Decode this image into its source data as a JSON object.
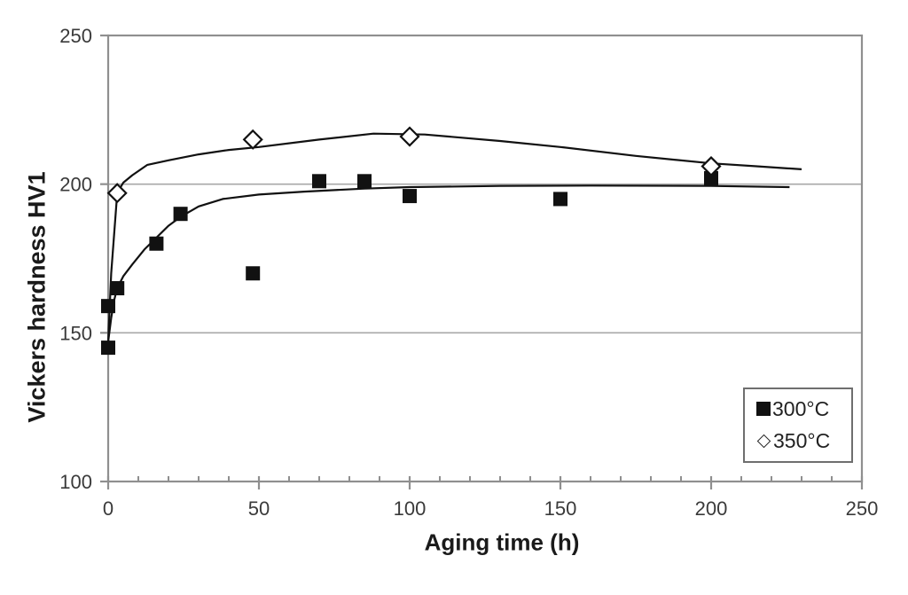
{
  "figure": {
    "background": "#ffffff",
    "curve_color": "#111111",
    "axis_color": "#8f8f8f",
    "grid_color": "#a8a8a8",
    "tick_label_color": "#3a3a3a"
  },
  "chart_data": {
    "type": "scatter",
    "title": "",
    "xlabel": "Aging time (h)",
    "ylabel": "Vickers hardness HV1",
    "xlim": [
      0,
      250
    ],
    "ylim": [
      100,
      250
    ],
    "x_major_ticks": [
      0,
      50,
      100,
      150,
      200,
      250
    ],
    "x_minor_tick_step": 10,
    "y_major_ticks": [
      100,
      150,
      200,
      250
    ],
    "y_gridlines": [
      150,
      200
    ],
    "grid_on": true,
    "legend_position": "bottom-right",
    "series": [
      {
        "name": "300°C",
        "marker": "filled-square",
        "points": [
          [
            0,
            145
          ],
          [
            0,
            159
          ],
          [
            3,
            165
          ],
          [
            16,
            180
          ],
          [
            24,
            190
          ],
          [
            48,
            170
          ],
          [
            70,
            201
          ],
          [
            85,
            201
          ],
          [
            100,
            196
          ],
          [
            150,
            195
          ],
          [
            200,
            202
          ]
        ],
        "trend_curve": [
          [
            0,
            147
          ],
          [
            1,
            155
          ],
          [
            2,
            161
          ],
          [
            3,
            165
          ],
          [
            5,
            169
          ],
          [
            8,
            173
          ],
          [
            12,
            178
          ],
          [
            16,
            182
          ],
          [
            20,
            186
          ],
          [
            24,
            189
          ],
          [
            30,
            192.5
          ],
          [
            38,
            195
          ],
          [
            50,
            196.5
          ],
          [
            65,
            197.5
          ],
          [
            85,
            198.5
          ],
          [
            100,
            199
          ],
          [
            130,
            199.4
          ],
          [
            160,
            199.5
          ],
          [
            200,
            199.4
          ],
          [
            226,
            199
          ]
        ]
      },
      {
        "name": "350°C",
        "marker": "open-diamond",
        "points": [
          [
            3,
            197
          ],
          [
            48,
            215
          ],
          [
            100,
            216
          ],
          [
            200,
            206
          ]
        ],
        "trend_curve": [
          [
            0,
            147
          ],
          [
            1,
            170
          ],
          [
            3,
            197
          ],
          [
            5,
            200.5
          ],
          [
            8,
            203
          ],
          [
            13,
            206.5
          ],
          [
            20,
            208
          ],
          [
            30,
            210
          ],
          [
            40,
            211.5
          ],
          [
            50,
            212.5
          ],
          [
            70,
            215
          ],
          [
            88,
            217
          ],
          [
            105,
            216.7
          ],
          [
            130,
            214.5
          ],
          [
            150,
            212.5
          ],
          [
            175,
            209.5
          ],
          [
            200,
            207
          ],
          [
            215,
            206
          ],
          [
            230,
            205
          ]
        ]
      }
    ]
  }
}
